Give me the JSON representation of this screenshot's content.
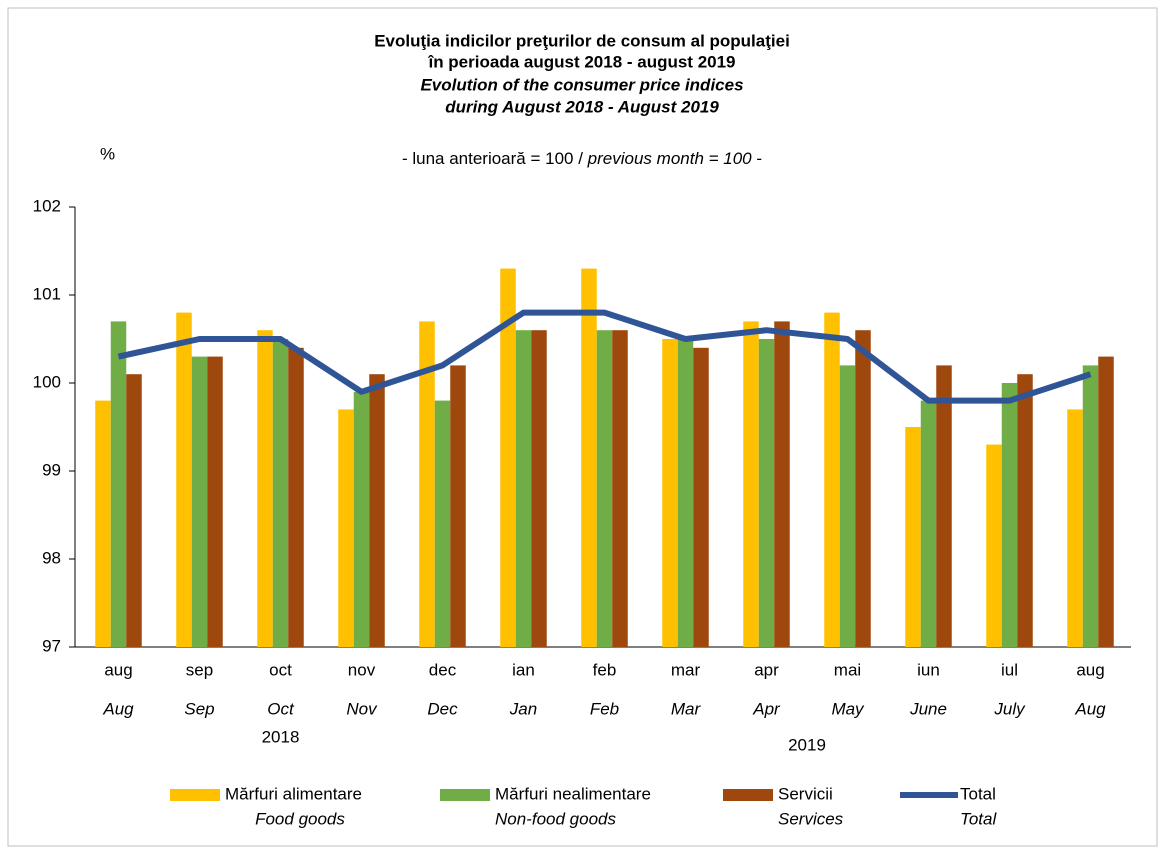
{
  "chart_data": {
    "type": "bar",
    "title": [
      "Evoluţia indicilor preţurilor de consum al populaţiei",
      "în perioada august 2018 - august 2019",
      "Evolution of the consumer price indices",
      "during August 2018 - August 2019"
    ],
    "subtitle": [
      "- luna anterioară = 100 / ",
      "previous month = 100",
      " -"
    ],
    "y_label": "%",
    "categories": [
      "aug",
      "sep",
      "oct",
      "nov",
      "dec",
      "ian",
      "feb",
      "mar",
      "apr",
      "mai",
      "iun",
      "iul",
      "aug"
    ],
    "categories_en": [
      "Aug",
      "Sep",
      "Oct",
      "Nov",
      "Dec",
      "Jan",
      "Feb",
      "Mar",
      "Apr",
      "May",
      "June",
      "July",
      "Aug"
    ],
    "year_labels": [
      "2018",
      "2019"
    ],
    "ylim": [
      97,
      102
    ],
    "yticks": [
      97,
      98,
      99,
      100,
      101,
      102
    ],
    "series": [
      {
        "name": "Mărfuri alimentare",
        "name_en": "Food goods",
        "type": "bar",
        "color": "#ffc000",
        "values": [
          99.8,
          100.8,
          100.6,
          99.7,
          100.7,
          101.3,
          101.3,
          100.5,
          100.7,
          100.8,
          99.5,
          99.3,
          99.7
        ]
      },
      {
        "name": "Mărfuri nealimentare",
        "name_en": "Non-food goods",
        "type": "bar",
        "color": "#70ad47",
        "values": [
          100.7,
          100.3,
          100.5,
          99.9,
          99.8,
          100.6,
          100.6,
          100.5,
          100.5,
          100.2,
          99.8,
          100.0,
          100.2
        ]
      },
      {
        "name": "Servicii",
        "name_en": "Services",
        "type": "bar",
        "color": "#9e480e",
        "values": [
          100.1,
          100.3,
          100.4,
          100.1,
          100.2,
          100.6,
          100.6,
          100.4,
          100.7,
          100.6,
          100.2,
          100.1,
          100.3
        ]
      },
      {
        "name": "Total",
        "name_en": "Total",
        "type": "line",
        "color": "#2f5597",
        "values": [
          100.3,
          100.5,
          100.5,
          99.9,
          100.2,
          100.8,
          100.8,
          100.5,
          100.6,
          100.5,
          99.8,
          99.8,
          100.1
        ]
      }
    ]
  }
}
